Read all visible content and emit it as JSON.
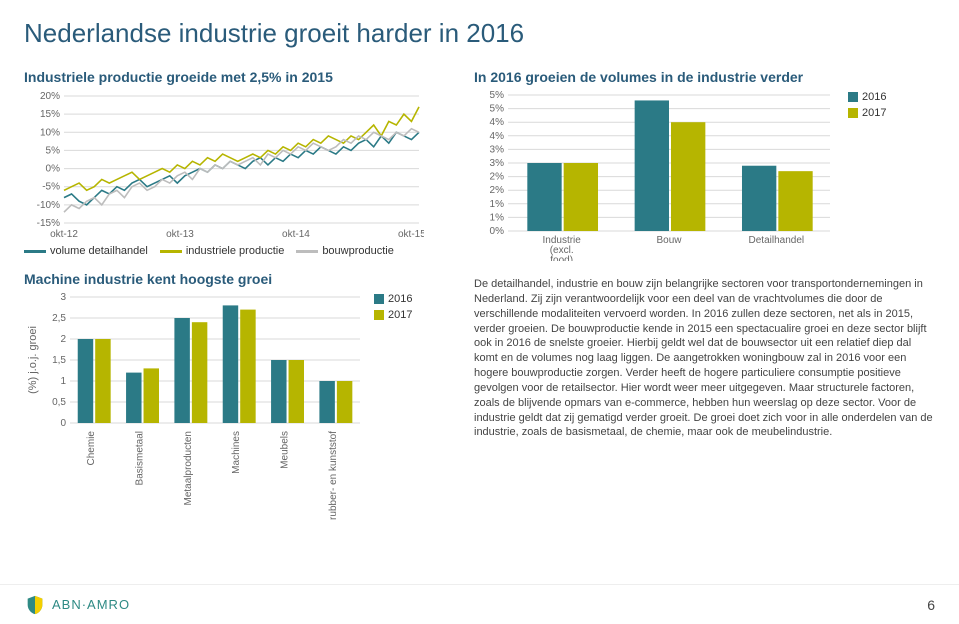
{
  "colors": {
    "title": "#2a5b7a",
    "section_title": "#2a5b7a",
    "text": "#444444",
    "teal": "#2b7a86",
    "olive": "#b6b500",
    "grey": "#bdbdbd",
    "grid": "#d9d9d9",
    "axis": "#888888",
    "logo_teal": "#2e8a84",
    "logo_yellow": "#f4cf00"
  },
  "title": "Nederlandse industrie groeit harder in 2016",
  "chart_line": {
    "title": "Industriele productie groeide met 2,5% in 2015",
    "type": "line",
    "y_ticks": [
      "20%",
      "15%",
      "10%",
      "5%",
      "0%",
      "-5%",
      "-10%",
      "-15%"
    ],
    "ymin": -15,
    "ymax": 20,
    "ystep": 5,
    "x_ticks": [
      "okt-12",
      "okt-13",
      "okt-14",
      "okt-15"
    ],
    "series": [
      {
        "name": "volume detailhandel",
        "color_key": "teal",
        "values": [
          -8,
          -7,
          -9,
          -10,
          -8,
          -6,
          -7,
          -5,
          -6,
          -4,
          -3,
          -5,
          -4,
          -3,
          -2,
          -4,
          -2,
          -1,
          0,
          -1,
          1,
          0,
          2,
          1,
          0,
          2,
          3,
          1,
          3,
          2,
          4,
          3,
          5,
          4,
          6,
          5,
          4,
          6,
          5,
          7,
          8,
          6,
          9,
          7,
          10,
          9,
          8,
          10
        ]
      },
      {
        "name": "industriele productie",
        "color_key": "olive",
        "values": [
          -6,
          -5,
          -4,
          -6,
          -5,
          -3,
          -4,
          -3,
          -2,
          -1,
          -3,
          -2,
          -1,
          0,
          -1,
          1,
          0,
          2,
          1,
          3,
          2,
          4,
          3,
          2,
          3,
          4,
          3,
          5,
          4,
          6,
          5,
          7,
          6,
          8,
          7,
          9,
          8,
          7,
          9,
          8,
          10,
          12,
          9,
          13,
          12,
          15,
          13,
          17
        ]
      },
      {
        "name": "bouwproductie",
        "color_key": "grey",
        "values": [
          -12,
          -10,
          -11,
          -9,
          -8,
          -10,
          -7,
          -6,
          -8,
          -5,
          -4,
          -6,
          -5,
          -3,
          -4,
          -2,
          -1,
          -3,
          0,
          -1,
          1,
          0,
          2,
          1,
          2,
          3,
          1,
          4,
          3,
          5,
          4,
          6,
          5,
          7,
          6,
          5,
          6,
          8,
          7,
          9,
          8,
          10,
          9,
          8,
          10,
          9,
          11,
          10
        ]
      }
    ],
    "legend": [
      {
        "label": "volume detailhandel",
        "color_key": "teal"
      },
      {
        "label": "industriele productie",
        "color_key": "olive"
      },
      {
        "label": "bouwproductie",
        "color_key": "grey"
      }
    ]
  },
  "chart_grouped": {
    "title": "In 2016 groeien de volumes in de industrie verder",
    "type": "bar-grouped",
    "y_ticks": [
      "5%",
      "5%",
      "4%",
      "4%",
      "3%",
      "3%",
      "2%",
      "2%",
      "1%",
      "1%",
      "0%"
    ],
    "ymin": 0,
    "ymax": 5,
    "categories": [
      "Industrie (excl. food)",
      "Bouw",
      "Detailhandel"
    ],
    "series": [
      {
        "name": "2016",
        "color_key": "teal",
        "values": [
          2.5,
          4.8,
          2.4
        ]
      },
      {
        "name": "2017",
        "color_key": "olive",
        "values": [
          2.5,
          4.0,
          2.2
        ]
      }
    ]
  },
  "chart_machine": {
    "title": "Machine industrie kent hoogste groei",
    "type": "bar-grouped",
    "ylabel": "(%) j.o.j. groei",
    "y_ticks": [
      "3",
      "2,5",
      "2",
      "1,5",
      "1",
      "0,5",
      "0"
    ],
    "ymin": 0,
    "ymax": 3,
    "ystep": 0.5,
    "categories": [
      "Chemie",
      "Basismetaal",
      "Metaalproducten",
      "Machines",
      "Meubels",
      "rubber- en kunststof"
    ],
    "series": [
      {
        "name": "2016",
        "color_key": "teal",
        "values": [
          2.0,
          1.2,
          2.5,
          2.8,
          1.5,
          1.0
        ]
      },
      {
        "name": "2017",
        "color_key": "olive",
        "values": [
          2.0,
          1.3,
          2.4,
          2.7,
          1.5,
          1.0
        ]
      }
    ]
  },
  "body_text": "De detailhandel, industrie en bouw zijn belangrijke sectoren voor transportondernemingen in Nederland. Zij zijn verantwoordelijk voor een deel van de vrachtvolumes die door de verschillende modaliteiten vervoerd worden. In 2016 zullen deze sectoren, net als in 2015, verder groeien. De bouwproductie kende in 2015 een spectacualire groei en deze sector blijft ook in 2016 de snelste groeier. Hierbij geldt wel dat de bouwsector uit een relatief diep dal komt en de volumes nog laag liggen. De aangetrokken woningbouw zal in 2016 voor een hogere bouwproductie zorgen. Verder heeft de hogere particuliere consumptie positieve gevolgen voor de retailsector. Hier wordt weer meer uitgegeven. Maar structurele factoren, zoals de blijvende opmars van e-commerce, hebben hun weerslag op deze sector. Voor de industrie geldt dat zij gematigd verder groeit. De groei doet zich voor in alle onderdelen van de industrie, zoals de basismetaal, de chemie, maar ook de meubelindustrie.",
  "footer": {
    "brand": "ABN·AMRO",
    "page": "6"
  }
}
